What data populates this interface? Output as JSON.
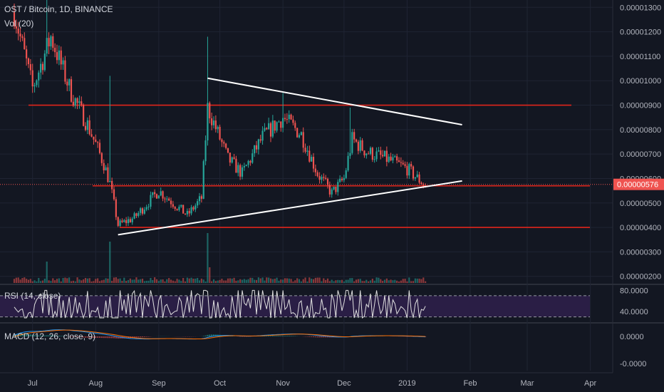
{
  "header": {
    "symbol_line": "OST / Bitcoin, 1D, BINANCE",
    "volume_label": "Vol (20)"
  },
  "rsi_label": "RSI (14, close)",
  "macd_label": "MACD (12, 26, close, 9)",
  "colors": {
    "background": "#131722",
    "up": "#26a69a",
    "down": "#ef5350",
    "hline": "#e0251b",
    "trendline": "#ffffff",
    "grid": "#1f2433",
    "axis_text": "#b2b5be",
    "price_tag": "#ef5350",
    "rsi_band": "#2a1e45",
    "rsi_line": "#e0e0e0",
    "macd_line": "#2196f3",
    "signal_line": "#ff6d00"
  },
  "chart_data": [
    {
      "type": "candlestick",
      "title": "OST / Bitcoin, 1D, BINANCE",
      "x_ticks": [
        "Jul",
        "Aug",
        "Sep",
        "Oct",
        "Nov",
        "Dec",
        "2019",
        "Feb",
        "Mar",
        "Apr"
      ],
      "y_ticks": [
        "0.00001300",
        "0.00001200",
        "0.00001100",
        "0.00001000",
        "0.00000900",
        "0.00000800",
        "0.00000700",
        "0.00000600",
        "0.00000500",
        "0.00000400",
        "0.00000300",
        "0.00000200"
      ],
      "ylim": [
        1.7e-06,
        1.33e-05
      ],
      "current_price": "0.00000576",
      "horizontal_levels": [
        9e-06,
        5.7e-06,
        4e-06
      ],
      "trendlines": [
        {
          "name": "descending resistance",
          "from": [
            "2018-09-25",
            1.01e-05
          ],
          "to": [
            "2019-01-28",
            8.2e-06
          ]
        },
        {
          "name": "ascending support",
          "from": [
            "2018-08-12",
            3.7e-06
          ],
          "to": [
            "2019-01-28",
            5.9e-06
          ]
        }
      ],
      "series": [
        {
          "name": "price path",
          "x": [
            "2018-06-22",
            "2018-07-01",
            "2018-07-10",
            "2018-07-20",
            "2018-07-28",
            "2018-08-05",
            "2018-08-08",
            "2018-08-12",
            "2018-08-20",
            "2018-09-01",
            "2018-09-15",
            "2018-09-22",
            "2018-09-25",
            "2018-10-05",
            "2018-10-12",
            "2018-10-22",
            "2018-11-01",
            "2018-11-10",
            "2018-11-18",
            "2018-11-25",
            "2018-12-01",
            "2018-12-05",
            "2018-12-12",
            "2018-12-22",
            "2019-01-01",
            "2019-01-10"
          ],
          "values": [
            1.28e-05,
            9.7e-06,
            1.18e-05,
            9.5e-06,
            8.2e-06,
            6.6e-06,
            5.8e-06,
            4.1e-06,
            4.4e-06,
            5.5e-06,
            4.5e-06,
            5.2e-06,
            8.9e-06,
            6.8e-06,
            6.2e-06,
            7.7e-06,
            8.5e-06,
            7.8e-06,
            6.2e-06,
            5.4e-06,
            6e-06,
            7.6e-06,
            7.1e-06,
            6.8e-06,
            6.4e-06,
            5.7e-06
          ]
        }
      ]
    },
    {
      "type": "line",
      "title": "RSI (14, close)",
      "y_ticks": [
        "80.0000",
        "40.0000"
      ],
      "ylim": [
        20,
        90
      ],
      "bands": [
        70,
        30
      ]
    },
    {
      "type": "line",
      "title": "MACD (12, 26, close, 9)",
      "y_ticks": [
        "0.0000",
        "-0.0000"
      ],
      "series": [
        {
          "name": "MACD"
        },
        {
          "name": "Signal"
        }
      ]
    }
  ]
}
